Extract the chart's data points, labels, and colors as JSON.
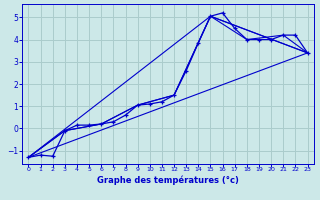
{
  "xlabel": "Graphe des températures (°c)",
  "bg_color": "#cce8e8",
  "grid_color": "#aacccc",
  "line_color": "#0000cc",
  "xlim": [
    -0.5,
    23.5
  ],
  "ylim": [
    -1.6,
    5.6
  ],
  "yticks": [
    -1,
    0,
    1,
    2,
    3,
    4,
    5
  ],
  "xticks": [
    0,
    1,
    2,
    3,
    4,
    5,
    6,
    7,
    8,
    9,
    10,
    11,
    12,
    13,
    14,
    15,
    16,
    17,
    18,
    19,
    20,
    21,
    22,
    23
  ],
  "main_x": [
    0,
    1,
    2,
    3,
    4,
    5,
    6,
    7,
    8,
    9,
    10,
    11,
    12,
    13,
    14,
    15,
    16,
    17,
    18,
    19,
    20,
    21,
    22,
    23
  ],
  "main_y": [
    -1.3,
    -1.2,
    -1.25,
    -0.1,
    0.15,
    0.15,
    0.2,
    0.3,
    0.6,
    1.05,
    1.1,
    1.2,
    1.5,
    2.6,
    3.85,
    5.05,
    5.2,
    4.5,
    4.0,
    4.0,
    4.0,
    4.2,
    4.2,
    3.4
  ],
  "trend1_x": [
    0,
    23
  ],
  "trend1_y": [
    -1.3,
    3.4
  ],
  "trend2_x": [
    0,
    15,
    23
  ],
  "trend2_y": [
    -1.3,
    5.05,
    3.4
  ],
  "trend3_x": [
    0,
    3,
    6,
    9,
    12,
    15,
    23
  ],
  "trend3_y": [
    -1.3,
    -0.1,
    0.2,
    1.05,
    1.5,
    5.05,
    3.4
  ],
  "trend4_x": [
    0,
    3,
    6,
    9,
    12,
    15,
    18,
    21,
    23
  ],
  "trend4_y": [
    -1.3,
    -0.1,
    0.2,
    1.05,
    1.5,
    5.05,
    4.0,
    4.2,
    3.4
  ]
}
